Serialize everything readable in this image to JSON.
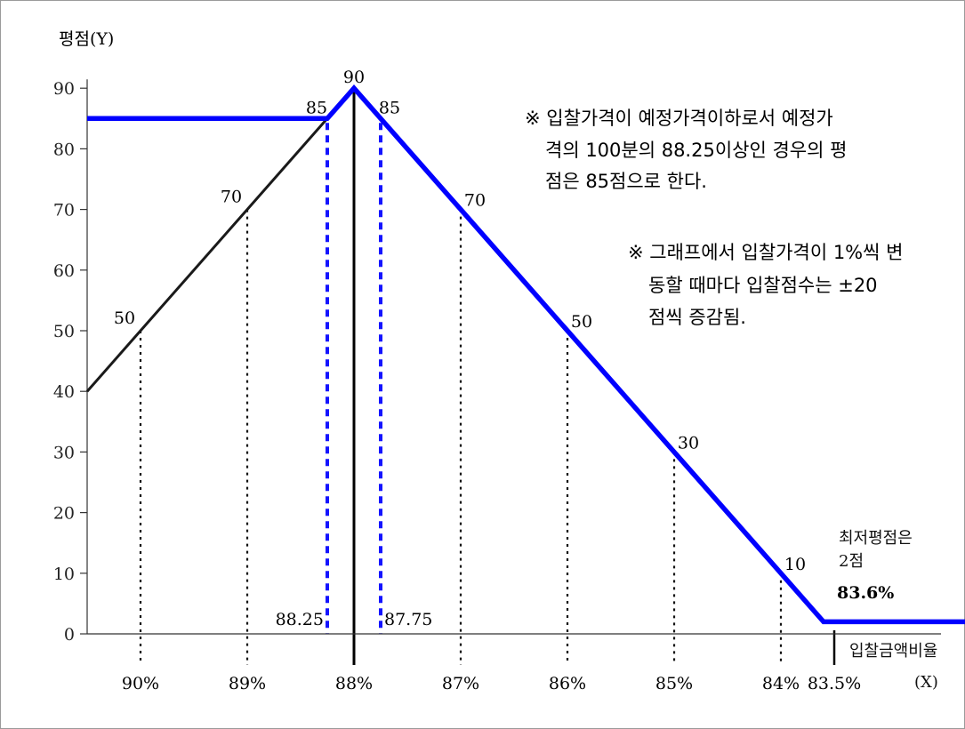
{
  "chart_data": {
    "type": "line",
    "ylabel": "평점(Y)",
    "xlabel": "입찰금액비율",
    "xunit": "(X)",
    "yticks": [
      "0",
      "10",
      "20",
      "30",
      "40",
      "50",
      "60",
      "70",
      "80",
      "90"
    ],
    "ylim": [
      0,
      90
    ],
    "xlim": [
      83.5,
      90.5
    ],
    "xticks": [
      {
        "x": 90,
        "label": "90%"
      },
      {
        "x": 89,
        "label": "89%"
      },
      {
        "x": 88,
        "label": "88%"
      },
      {
        "x": 87,
        "label": "87%"
      },
      {
        "x": 86,
        "label": "86%"
      },
      {
        "x": 85,
        "label": "85%"
      },
      {
        "x": 84,
        "label": "84%"
      },
      {
        "x": 83.5,
        "label": "83.5%"
      }
    ],
    "series": [
      {
        "color": "#1a1a1a",
        "points": [
          [
            90.5,
            40
          ],
          [
            90,
            50
          ],
          [
            89,
            70
          ],
          [
            88.25,
            85
          ],
          [
            88,
            90
          ]
        ]
      },
      {
        "color": "#0000ff",
        "points": [
          [
            90.5,
            85
          ],
          [
            88.25,
            85
          ],
          [
            88,
            90
          ],
          [
            87.75,
            85
          ],
          [
            87,
            70
          ],
          [
            86,
            50
          ],
          [
            85,
            30
          ],
          [
            84,
            10
          ],
          [
            83.6,
            2
          ],
          [
            82.2,
            2
          ]
        ]
      }
    ],
    "point_labels": [
      {
        "x": 90,
        "y": 50,
        "label": "50"
      },
      {
        "x": 89,
        "y": 70,
        "label": "70"
      },
      {
        "x": 88.25,
        "y": 85,
        "label": "85"
      },
      {
        "x": 88,
        "y": 90,
        "label": "90"
      },
      {
        "x": 87.75,
        "y": 85,
        "label": "85"
      },
      {
        "x": 87,
        "y": 70,
        "label": "70"
      },
      {
        "x": 86,
        "y": 50,
        "label": "50"
      },
      {
        "x": 85,
        "y": 30,
        "label": "30"
      },
      {
        "x": 84,
        "y": 10,
        "label": "10"
      }
    ],
    "guides_dotted_black": [
      90,
      89,
      87,
      86,
      85,
      84
    ],
    "guides_dashed_blue": [
      88.25,
      87.75
    ],
    "guide_labels": [
      {
        "x": 88.25,
        "label": "88.25"
      },
      {
        "x": 87.75,
        "label": "87.75"
      }
    ],
    "annotations": {
      "min_score": "최저평점은",
      "min_score_2": "2점",
      "min_ratio": "83.6%",
      "note1_line1": "※ 입찰가격이 예정가격이하로서 예정가",
      "note1_line2": "격의 100분의 88.25이상인 경우의 평",
      "note1_line3": "점은 85점으로 한다.",
      "note2_line1": "※ 그래프에서 입찰가격이 1%씩 변",
      "note2_line2": "동할 때마다 입찰점수는 ±20",
      "note2_line3": "점씩 증감됨."
    }
  }
}
